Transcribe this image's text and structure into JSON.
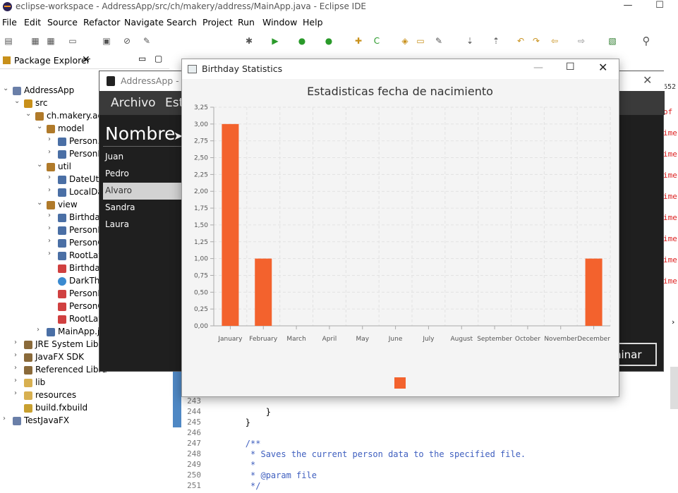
{
  "ide": {
    "window_title": "eclipse-workspace - AddressApp/src/ch/makery/address/MainApp.java - Eclipse IDE",
    "menu": [
      "File",
      "Edit",
      "Source",
      "Refactor",
      "Navigate",
      "Search",
      "Project",
      "Run",
      "Window",
      "Help"
    ]
  },
  "package_explorer": {
    "tab_label": "Package Explorer",
    "tree": [
      {
        "label": "AddressApp",
        "icon": "project-icon"
      },
      {
        "label": "src",
        "icon": "source-folder-icon"
      },
      {
        "label": "ch.makery.ad",
        "icon": "package-icon"
      },
      {
        "label": "model",
        "icon": "package-icon"
      },
      {
        "label": "Person.j",
        "icon": "java-file-icon"
      },
      {
        "label": "PersonL",
        "icon": "java-file-icon"
      },
      {
        "label": "util",
        "icon": "package-icon"
      },
      {
        "label": "DateUti",
        "icon": "java-file-icon"
      },
      {
        "label": "LocalDa",
        "icon": "java-file-icon"
      },
      {
        "label": "view",
        "icon": "package-icon"
      },
      {
        "label": "Birthday",
        "icon": "java-file-icon"
      },
      {
        "label": "PersonE",
        "icon": "java-file-icon"
      },
      {
        "label": "PersonC",
        "icon": "java-file-icon"
      },
      {
        "label": "RootLay",
        "icon": "java-file-icon"
      },
      {
        "label": "Birthday",
        "icon": "fxml-file-icon"
      },
      {
        "label": "DarkThe",
        "icon": "css-file-icon"
      },
      {
        "label": "PersonE",
        "icon": "fxml-file-icon"
      },
      {
        "label": "PersonC",
        "icon": "fxml-file-icon"
      },
      {
        "label": "RootLay",
        "icon": "fxml-file-icon"
      },
      {
        "label": "MainApp.ja",
        "icon": "java-file-icon"
      },
      {
        "label": "JRE System Librar",
        "icon": "library-icon"
      },
      {
        "label": "JavaFX SDK",
        "icon": "library-icon"
      },
      {
        "label": "Referenced Libra",
        "icon": "library-icon"
      },
      {
        "label": "lib",
        "icon": "folder-icon"
      },
      {
        "label": "resources",
        "icon": "folder-icon"
      },
      {
        "label": "build.fxbuild",
        "icon": "build-file-icon"
      },
      {
        "label": "TestJavaFX",
        "icon": "project-icon"
      }
    ]
  },
  "editor": {
    "lines": [
      {
        "num": "243",
        "code": ""
      },
      {
        "num": "244",
        "code": "            }"
      },
      {
        "num": "245",
        "code": "        }"
      },
      {
        "num": "246",
        "code": ""
      },
      {
        "num": "247",
        "code": "        /**"
      },
      {
        "num": "248",
        "code": "         * Saves the current person data to the specified file."
      },
      {
        "num": "249",
        "code": "         *"
      },
      {
        "num": "250",
        "code": "         * @param file"
      },
      {
        "num": "251",
        "code": "         */"
      }
    ],
    "right_snippets": [
      "of",
      "ime",
      "ime",
      "ime",
      "ime",
      "ime",
      "ime",
      "ime",
      "ime"
    ],
    "right_number": "652"
  },
  "address_app": {
    "title": "AddressApp - fic",
    "menu": [
      "Archivo",
      "Est"
    ],
    "header": "Nombre",
    "persons": [
      "Juan",
      "Pedro",
      "Alvaro",
      "Sandra",
      "Laura"
    ],
    "selected": "Alvaro",
    "button_partial": "ninar"
  },
  "birthday_window": {
    "title": "Birthday Statistics",
    "accent": "#f3622d"
  },
  "chart_data": {
    "type": "bar",
    "title": "Estadisticas fecha de nacimiento",
    "categories": [
      "January",
      "February",
      "March",
      "April",
      "May",
      "June",
      "July",
      "August",
      "September",
      "October",
      "November",
      "December"
    ],
    "series": [
      {
        "values": [
          3,
          1,
          0,
          0,
          0,
          0,
          0,
          0,
          0,
          0,
          0,
          1
        ]
      }
    ],
    "ylim": [
      0,
      3.25
    ],
    "yticks": [
      "0,00",
      "0,25",
      "0,50",
      "0,75",
      "1,00",
      "1,25",
      "1,50",
      "1,75",
      "2,00",
      "2,25",
      "2,50",
      "2,75",
      "3,00",
      "3,25"
    ],
    "grid": true,
    "legend": "bottom",
    "bar_color": "#f3622d"
  }
}
